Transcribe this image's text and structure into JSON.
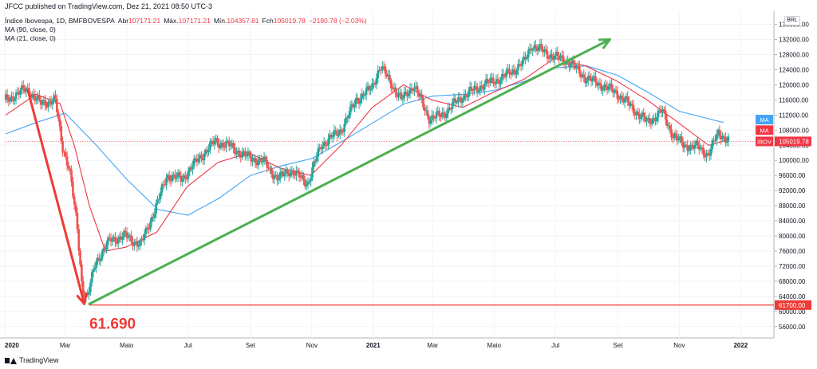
{
  "header": {
    "published": "JFCC published on TradingView.com, Dez 21, 2021 08:50 UTC-3"
  },
  "legend": {
    "symbol": "Índice Ibovespa, 1D, BMFBOVESPA",
    "open_label": "Abr",
    "open": "107171.21",
    "high_label": "Máx.",
    "high": "107171.21",
    "low_label": "Mín.",
    "low": "104357.81",
    "close_label": "Fch",
    "close": "105019.78",
    "change": "−2180.78 (−2.03%)",
    "ma1": "MA (90, close, 0)",
    "ma2": "MA (21, close, 0)"
  },
  "footer": {
    "brand": "TradingView"
  },
  "colors": {
    "up": "#26a69a",
    "down": "#ef5350",
    "ma90": "#42a5f5",
    "ma21": "#f23645",
    "trend_down": "#ef3b36",
    "trend_up": "#4caf50",
    "support": "#ef3b36"
  },
  "chart_data": {
    "type": "candlestick",
    "currency": "BRL",
    "y_ticks": [
      136000,
      132000,
      128000,
      124000,
      120000,
      116000,
      112000,
      108000,
      104000,
      100000,
      96000,
      92000,
      88000,
      84000,
      80000,
      76000,
      72000,
      68000,
      64000,
      60000,
      56000
    ],
    "y_tick_labels": [
      "136000.00",
      "132000.00",
      "128000.00",
      "124000.00",
      "120000.00",
      "116000.00",
      "112000.00",
      "108000.00",
      "104000.00",
      "100000.00",
      "96000.00",
      "92000.00",
      "88000.00",
      "84000.00",
      "80000.00",
      "76000.00",
      "72000.00",
      "68000.00",
      "64000.00",
      "60000.00",
      "56000.00"
    ],
    "ylim": [
      53000,
      139500
    ],
    "x_labels": [
      "2020",
      "Mar",
      "Maio",
      "Jul",
      "Set",
      "Nov",
      "2021",
      "Mar",
      "Maio",
      "Jul",
      "Set",
      "Nov",
      "2022"
    ],
    "x_label_dates": [
      "2020-01-01",
      "2020-03-01",
      "2020-05-01",
      "2020-07-01",
      "2020-09-01",
      "2020-11-01",
      "2021-01-01",
      "2021-03-01",
      "2021-05-01",
      "2021-07-01",
      "2021-09-01",
      "2021-11-01",
      "2022-01-01"
    ],
    "xlim": [
      "2020-01-01",
      "2022-02-03"
    ],
    "close_path": [
      [
        "2020-01-02",
        116000
      ],
      [
        "2020-01-23",
        119000
      ],
      [
        "2020-02-05",
        115000
      ],
      [
        "2020-02-20",
        116000
      ],
      [
        "2020-02-27",
        104000
      ],
      [
        "2020-03-05",
        98000
      ],
      [
        "2020-03-10",
        88000
      ],
      [
        "2020-03-13",
        82000
      ],
      [
        "2020-03-18",
        66000
      ],
      [
        "2020-03-23",
        63500
      ],
      [
        "2020-03-31",
        73000
      ],
      [
        "2020-04-15",
        79000
      ],
      [
        "2020-04-30",
        80000
      ],
      [
        "2020-05-15",
        77500
      ],
      [
        "2020-06-01",
        89000
      ],
      [
        "2020-06-10",
        96000
      ],
      [
        "2020-06-25",
        95000
      ],
      [
        "2020-07-10",
        100000
      ],
      [
        "2020-07-28",
        105000
      ],
      [
        "2020-08-10",
        104000
      ],
      [
        "2020-08-28",
        101000
      ],
      [
        "2020-09-15",
        99500
      ],
      [
        "2020-09-28",
        95000
      ],
      [
        "2020-10-10",
        97500
      ],
      [
        "2020-10-28",
        94000
      ],
      [
        "2020-11-10",
        104000
      ],
      [
        "2020-11-30",
        108000
      ],
      [
        "2020-12-15",
        116000
      ],
      [
        "2020-12-30",
        119000
      ],
      [
        "2021-01-08",
        125000
      ],
      [
        "2021-01-29",
        116000
      ],
      [
        "2021-02-10",
        120000
      ],
      [
        "2021-02-26",
        111000
      ],
      [
        "2021-03-10",
        112000
      ],
      [
        "2021-03-31",
        117000
      ],
      [
        "2021-04-20",
        120000
      ],
      [
        "2021-05-10",
        122000
      ],
      [
        "2021-05-31",
        126000
      ],
      [
        "2021-06-07",
        130500
      ],
      [
        "2021-06-25",
        128000
      ],
      [
        "2021-07-15",
        126000
      ],
      [
        "2021-07-30",
        122000
      ],
      [
        "2021-08-15",
        120000
      ],
      [
        "2021-08-30",
        118000
      ],
      [
        "2021-09-15",
        114000
      ],
      [
        "2021-09-30",
        110000
      ],
      [
        "2021-10-15",
        113000
      ],
      [
        "2021-10-25",
        107000
      ],
      [
        "2021-11-05",
        104000
      ],
      [
        "2021-11-20",
        103500
      ],
      [
        "2021-11-30",
        101500
      ],
      [
        "2021-12-10",
        107500
      ],
      [
        "2021-12-20",
        105019.78
      ]
    ],
    "ma21_path": [
      [
        "2020-01-02",
        112000
      ],
      [
        "2020-02-01",
        117500
      ],
      [
        "2020-02-25",
        115000
      ],
      [
        "2020-03-10",
        104000
      ],
      [
        "2020-03-25",
        88000
      ],
      [
        "2020-04-10",
        76000
      ],
      [
        "2020-04-30",
        77000
      ],
      [
        "2020-05-31",
        81000
      ],
      [
        "2020-06-30",
        93000
      ],
      [
        "2020-07-31",
        99500
      ],
      [
        "2020-08-31",
        102000
      ],
      [
        "2020-09-30",
        98000
      ],
      [
        "2020-10-31",
        96000
      ],
      [
        "2020-11-30",
        104000
      ],
      [
        "2020-12-31",
        114000
      ],
      [
        "2021-01-31",
        120000
      ],
      [
        "2021-02-28",
        116000
      ],
      [
        "2021-03-31",
        114000
      ],
      [
        "2021-04-30",
        118000
      ],
      [
        "2021-05-31",
        121500
      ],
      [
        "2021-06-30",
        127000
      ],
      [
        "2021-07-31",
        125000
      ],
      [
        "2021-08-31",
        121000
      ],
      [
        "2021-09-30",
        116000
      ],
      [
        "2021-10-31",
        110000
      ],
      [
        "2021-11-30",
        104000
      ],
      [
        "2021-12-20",
        105500
      ]
    ],
    "ma90_path": [
      [
        "2020-01-02",
        107000
      ],
      [
        "2020-02-01",
        110000
      ],
      [
        "2020-03-01",
        112500
      ],
      [
        "2020-04-01",
        104000
      ],
      [
        "2020-05-01",
        95000
      ],
      [
        "2020-06-01",
        87000
      ],
      [
        "2020-07-01",
        85500
      ],
      [
        "2020-08-01",
        90000
      ],
      [
        "2020-09-01",
        96000
      ],
      [
        "2020-10-01",
        98500
      ],
      [
        "2020-11-01",
        100500
      ],
      [
        "2020-12-01",
        105000
      ],
      [
        "2021-01-01",
        110000
      ],
      [
        "2021-02-01",
        115000
      ],
      [
        "2021-03-01",
        117000
      ],
      [
        "2021-04-01",
        117500
      ],
      [
        "2021-05-01",
        118500
      ],
      [
        "2021-06-01",
        121000
      ],
      [
        "2021-07-01",
        124500
      ],
      [
        "2021-08-01",
        125000
      ],
      [
        "2021-09-01",
        122500
      ],
      [
        "2021-10-01",
        118000
      ],
      [
        "2021-11-01",
        113000
      ],
      [
        "2021-12-15",
        110000
      ]
    ],
    "annotations": {
      "trend_down": {
        "from": [
          "2020-01-24",
          118500
        ],
        "to": [
          "2020-03-20",
          62000
        ]
      },
      "trend_up": {
        "from": [
          "2020-03-25",
          62000
        ],
        "to": [
          "2021-08-24",
          132000
        ]
      },
      "support_level": 61700,
      "support_tag": "61700.00",
      "low_label": "61.690",
      "low_label_anchor": [
        "2020-03-25",
        58000
      ]
    },
    "price_tags": [
      {
        "label": "MA",
        "value": 110800,
        "color": "#42a5f5"
      },
      {
        "label": "MA",
        "value": 108000,
        "color": "#f23645"
      },
      {
        "label": "IBOV",
        "value": 105019.78,
        "value_label": "105019.78",
        "color": "#f23645"
      }
    ]
  }
}
